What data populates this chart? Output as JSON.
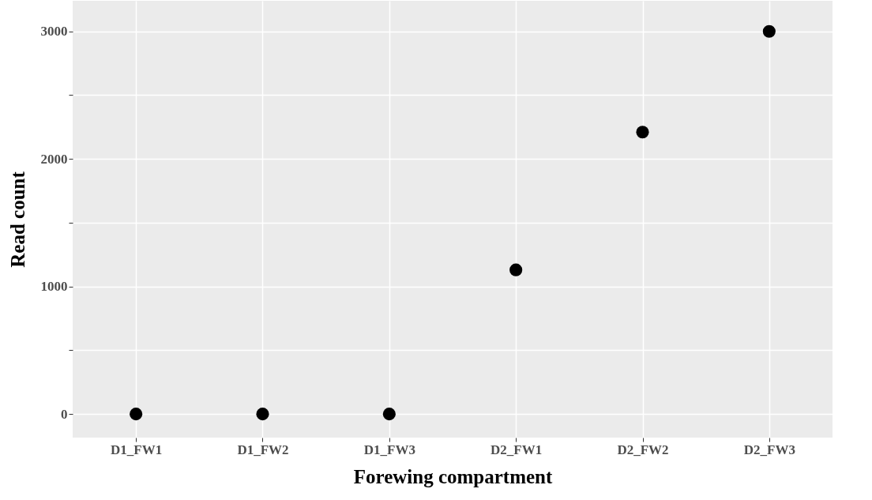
{
  "chart_data": {
    "type": "scatter",
    "xlabel": "Forewing compartment",
    "ylabel": "Read count",
    "categories": [
      "D1_FW1",
      "D1_FW2",
      "D1_FW3",
      "D2_FW1",
      "D2_FW2",
      "D2_FW3"
    ],
    "values": [
      0,
      0,
      0,
      1130,
      2210,
      3000
    ],
    "color": "#000000",
    "marker": "circle",
    "ylim": [
      -185,
      3240
    ],
    "yticks": [
      0,
      {
        "value": 500,
        "label": null
      },
      1000,
      {
        "value": 1500,
        "label": null
      },
      2000,
      {
        "value": 2500,
        "label": null
      },
      3000
    ],
    "grid": true
  }
}
